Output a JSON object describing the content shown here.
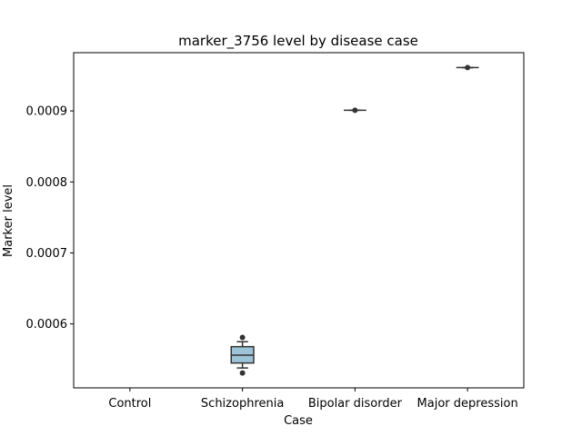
{
  "chart_data": {
    "type": "box",
    "title": "marker_3756 level by disease case",
    "xlabel": "Case",
    "ylabel": "Marker level",
    "categories": [
      "Control",
      "Schizophrenia",
      "Bipolar disorder",
      "Major depression"
    ],
    "yticks": [
      0.0006,
      0.0007,
      0.0008,
      0.0009
    ],
    "ytick_labels": [
      "0.0006",
      "0.0007",
      "0.0008",
      "0.0009"
    ],
    "ylim": [
      0.00051,
      0.000982
    ],
    "box_color": "#9dc3d8",
    "line_color": "#333333",
    "grid": false,
    "boxes": [
      {
        "category": "Control",
        "empty": true
      },
      {
        "category": "Schizophrenia",
        "whisker_low": 0.000538,
        "q1": 0.000545,
        "median": 0.000556,
        "q3": 0.000568,
        "whisker_high": 0.000575,
        "outliers": [
          0.000531,
          0.000581
        ]
      },
      {
        "category": "Bipolar disorder",
        "whisker_low": 0.000901,
        "q1": 0.000901,
        "median": 0.000901,
        "q3": 0.000901,
        "whisker_high": 0.000901,
        "outliers": [
          0.000901
        ]
      },
      {
        "category": "Major depression",
        "whisker_low": 0.000961,
        "q1": 0.000961,
        "median": 0.000961,
        "q3": 0.000961,
        "whisker_high": 0.000961,
        "outliers": [
          0.000961
        ]
      }
    ]
  }
}
